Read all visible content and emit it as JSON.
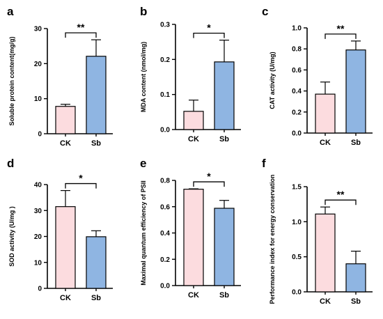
{
  "colors": {
    "CK": "#fcdcdf",
    "Sb": "#8fb5e2",
    "stroke": "#000000"
  },
  "chart_data": [
    {
      "panel": "a",
      "type": "bar",
      "categories": [
        "CK",
        "Sb"
      ],
      "values": [
        7.8,
        22.1
      ],
      "errors": [
        0.6,
        4.7
      ],
      "ylabel": "Soluble protein content(mg/g)",
      "ylim": [
        0,
        30
      ],
      "yticks": [
        "0",
        "10",
        "20",
        "30"
      ],
      "ytick_values": [
        0,
        10,
        20,
        30
      ],
      "significance": "**"
    },
    {
      "panel": "b",
      "type": "bar",
      "categories": [
        "CK",
        "Sb"
      ],
      "values": [
        0.052,
        0.193
      ],
      "errors": [
        0.032,
        0.062
      ],
      "ylabel": "MDA content (nmol/mg)",
      "ylim": [
        0,
        0.3
      ],
      "yticks": [
        "0.0",
        "0.1",
        "0.2",
        "0.3"
      ],
      "ytick_values": [
        0,
        0.1,
        0.2,
        0.3
      ],
      "significance": "*"
    },
    {
      "panel": "c",
      "type": "bar",
      "categories": [
        "CK",
        "Sb"
      ],
      "values": [
        0.37,
        0.79
      ],
      "errors": [
        0.115,
        0.085
      ],
      "ylabel": "CAT activity (U/mg)",
      "ylim": [
        0,
        1.0
      ],
      "yticks": [
        "0.0",
        "0.2",
        "0.4",
        "0.6",
        "0.8",
        "1.0"
      ],
      "ytick_values": [
        0,
        0.2,
        0.4,
        0.6,
        0.8,
        1.0
      ],
      "significance": "**"
    },
    {
      "panel": "d",
      "type": "bar",
      "categories": [
        "CK",
        "Sb"
      ],
      "values": [
        31.5,
        19.9
      ],
      "errors": [
        6.2,
        2.3
      ],
      "ylabel": "SOD activity (U/mg )",
      "ylim": [
        0,
        40
      ],
      "yticks": [
        "0",
        "10",
        "20",
        "30",
        "40"
      ],
      "ytick_values": [
        0,
        10,
        20,
        30,
        40
      ],
      "significance": "*"
    },
    {
      "panel": "e",
      "type": "bar",
      "categories": [
        "CK",
        "Sb"
      ],
      "values": [
        0.733,
        0.588
      ],
      "errors": [
        0.003,
        0.06
      ],
      "ylabel": "Maximal quantum efficiency of PSII",
      "ylim": [
        0,
        0.8
      ],
      "yticks": [
        "0.0",
        "0.2",
        "0.4",
        "0.6",
        "0.8"
      ],
      "ytick_values": [
        0,
        0.2,
        0.4,
        0.6,
        0.8
      ],
      "significance": "*"
    },
    {
      "panel": "f",
      "type": "bar",
      "categories": [
        "CK",
        "Sb"
      ],
      "values": [
        1.11,
        0.4
      ],
      "errors": [
        0.1,
        0.18
      ],
      "ylabel": "Performance index for energy conservation",
      "ylim": [
        0,
        1.5
      ],
      "yticks": [
        "0.0",
        "0.5",
        "1.0",
        "1.5"
      ],
      "ytick_values": [
        0,
        0.5,
        1.0,
        1.5
      ],
      "significance": "**"
    }
  ]
}
